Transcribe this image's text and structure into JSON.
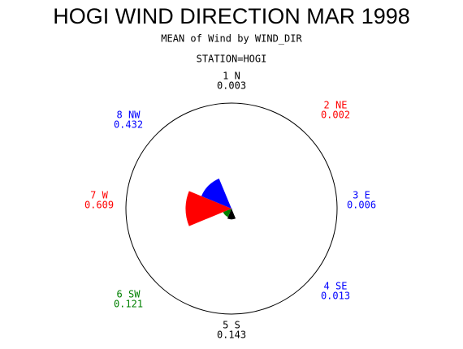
{
  "chart_data": {
    "type": "star",
    "title": "HOGI WIND DIRECTION MAR 1998",
    "subtitle": "MEAN of Wind by WIND_DIR",
    "station": "STATION=HOGI",
    "categories": [
      "1 N",
      "2 NE",
      "3 E",
      "4 SE",
      "5 S",
      "6 SW",
      "7 W",
      "8 NW"
    ],
    "values": [
      0.003,
      0.002,
      0.006,
      0.013,
      0.143,
      0.121,
      0.609,
      0.432
    ],
    "colors": [
      "#000000",
      "#ff0000",
      "#0000ff",
      "#0000ff",
      "#000000",
      "#008000",
      "#ff0000",
      "#0000ff"
    ],
    "rlim": [
      0,
      1.4
    ]
  }
}
